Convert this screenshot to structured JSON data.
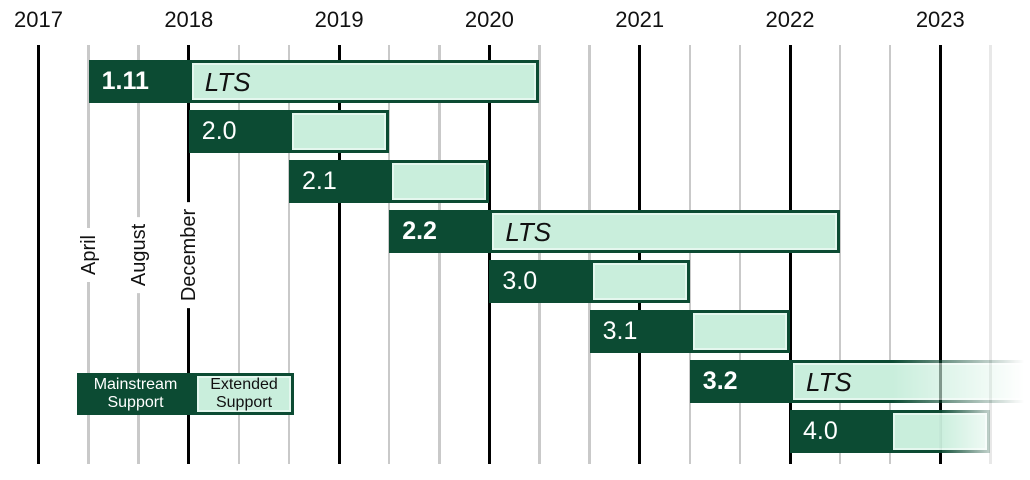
{
  "chart_data": {
    "type": "bar",
    "subtype": "gantt-version-support-timeline",
    "x_axis": {
      "years": [
        2017,
        2018,
        2019,
        2020,
        2021,
        2022,
        2023
      ],
      "minor_month_labels": [
        "April",
        "August",
        "December"
      ]
    },
    "legend": {
      "mainstream": "Mainstream Support",
      "extended": "Extended Support",
      "position": "bottom-left"
    },
    "releases": [
      {
        "version": "1.11",
        "lts": true,
        "lts_label": "LTS",
        "released": [
          2017,
          4
        ],
        "mainstream_until": [
          2017,
          12
        ],
        "extended_until": [
          2020,
          4
        ],
        "fade": "none"
      },
      {
        "version": "2.0",
        "lts": false,
        "lts_label": "",
        "released": [
          2017,
          12
        ],
        "mainstream_until": [
          2018,
          8
        ],
        "extended_until": [
          2019,
          4
        ],
        "fade": "none"
      },
      {
        "version": "2.1",
        "lts": false,
        "lts_label": "",
        "released": [
          2018,
          8
        ],
        "mainstream_until": [
          2019,
          4
        ],
        "extended_until": [
          2019,
          12
        ],
        "fade": "none"
      },
      {
        "version": "2.2",
        "lts": true,
        "lts_label": "LTS",
        "released": [
          2019,
          4
        ],
        "mainstream_until": [
          2019,
          12
        ],
        "extended_until": [
          2022,
          4
        ],
        "fade": "none"
      },
      {
        "version": "3.0",
        "lts": false,
        "lts_label": "",
        "released": [
          2019,
          12
        ],
        "mainstream_until": [
          2020,
          8
        ],
        "extended_until": [
          2021,
          4
        ],
        "fade": "none"
      },
      {
        "version": "3.1",
        "lts": false,
        "lts_label": "",
        "released": [
          2020,
          8
        ],
        "mainstream_until": [
          2021,
          4
        ],
        "extended_until": [
          2021,
          12
        ],
        "fade": "none"
      },
      {
        "version": "3.2",
        "lts": true,
        "lts_label": "LTS",
        "released": [
          2021,
          4
        ],
        "mainstream_until": [
          2021,
          12
        ],
        "extended_until": null,
        "fade": "full"
      },
      {
        "version": "4.0",
        "lts": false,
        "lts_label": "",
        "released": [
          2021,
          12
        ],
        "mainstream_until": [
          2022,
          8
        ],
        "extended_until": [
          2023,
          4
        ],
        "fade": "partial"
      }
    ],
    "colors": {
      "mainstream": "#0C4B33",
      "extended": "#C9EEDC",
      "grid_major": "#000000",
      "grid_minor": "#C9C9C9",
      "grid_faint": "#E8E8E8",
      "label_on_dark": "#FFFFFF",
      "label_on_light": "#111111"
    },
    "layout": {
      "grid": "on",
      "note": "year gridlines fall on December of the previous year; minor gridlines at April and August; rightmost LTS bar fades out past chart edge"
    }
  }
}
